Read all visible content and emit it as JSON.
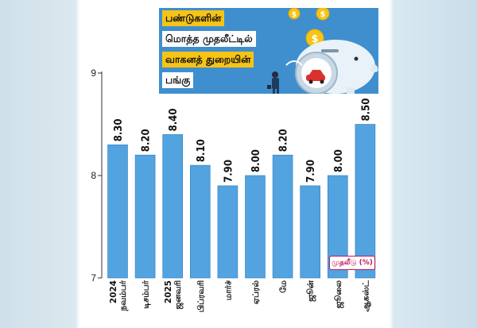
{
  "title_lines": [
    "பண்டுகளின்",
    "மொத்த முதலீட்டில்",
    "வாகனத் துறையின்",
    "பங்கு"
  ],
  "unit_label": "முதலீடு (%)",
  "colors": {
    "bar": "#52a3e0",
    "bar_stroke": "#2f7fbf",
    "title_bg": "#3f8fcf",
    "highlight": "#f7c415",
    "axis": "#333333"
  },
  "chart_data": {
    "type": "bar",
    "categories": [
      "2024 நவம்பர்",
      "டிசம்பர்",
      "2025 ஜனவரி",
      "பிப்ரவரி",
      "மார்ச்",
      "ஏப்ரல்",
      "மே",
      "ஜூன்",
      "ஜூலை",
      "ஆகஸ்ட்"
    ],
    "values": [
      8.3,
      8.2,
      8.4,
      8.1,
      7.9,
      8.0,
      8.2,
      7.9,
      8.0,
      8.5
    ],
    "value_labels": [
      "8.30",
      "8.20",
      "8.40",
      "8.10",
      "7.90",
      "8.00",
      "8.20",
      "7.90",
      "8.00",
      "8.50"
    ],
    "title": "பண்டுகளின் மொத்த முதலீட்டில் வாகனத் துறையின் பங்கு",
    "xlabel": "",
    "ylabel": "",
    "ylim": [
      7,
      9
    ],
    "yticks": [
      "7",
      "8",
      "9"
    ],
    "grid": false,
    "label_orientation": "vertical"
  }
}
